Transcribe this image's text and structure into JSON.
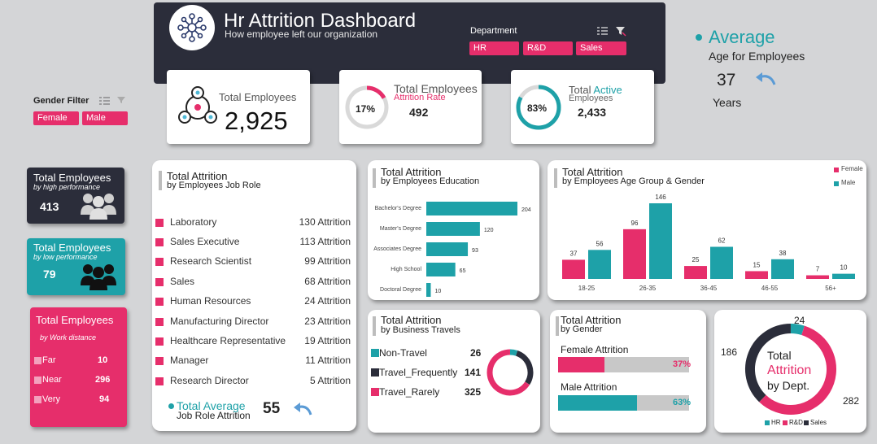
{
  "header": {
    "title": "Hr Attrition Dashboard",
    "subtitle": "How employee left our organization",
    "department_label": "Department",
    "departments": [
      "HR",
      "R&D",
      "Sales"
    ]
  },
  "gender_filter": {
    "label": "Gender Filter",
    "options": [
      "Female",
      "Male"
    ]
  },
  "kpi_total": {
    "label": "Total Employees",
    "value": "2,925"
  },
  "kpi_attrition": {
    "label1": "Total Employees",
    "label2": "Attrition Rate",
    "percent": "17%",
    "percent_value": 17,
    "value": "492"
  },
  "kpi_active": {
    "label1": "Total",
    "label1b": "Active",
    "label2": "Employees",
    "percent": "83%",
    "percent_value": 83,
    "value": "2,433"
  },
  "avg_age": {
    "title": "Average",
    "subtitle": "Age for Employees",
    "value": "37",
    "unit": "Years"
  },
  "high_perf": {
    "title": "Total Employees",
    "sub": "by high performance",
    "value": "413"
  },
  "low_perf": {
    "title": "Total Employees",
    "sub": "by low performance",
    "value": "79"
  },
  "distance": {
    "title": "Total Employees",
    "sub": "by Work distance",
    "rows": [
      {
        "label": "Far",
        "value": "10"
      },
      {
        "label": "Near",
        "value": "296"
      },
      {
        "label": "Very",
        "value": "94"
      }
    ]
  },
  "job_role": {
    "title": "Total Attrition",
    "sub": "by Employees Job Role",
    "rows": [
      {
        "name": "Laboratory",
        "value": "130 Attrition"
      },
      {
        "name": "Sales Executive",
        "value": "113 Attrition"
      },
      {
        "name": "Research Scientist",
        "value": "99 Attrition"
      },
      {
        "name": "Sales",
        "value": "68 Attrition"
      },
      {
        "name": "Human Resources",
        "value": "24 Attrition"
      },
      {
        "name": "Manufacturing Director",
        "value": "23 Attrition"
      },
      {
        "name": "Healthcare Representative",
        "value": "19 Attrition"
      },
      {
        "name": "Manager",
        "value": "11 Attrition"
      },
      {
        "name": "Research Director",
        "value": "5 Attrition"
      }
    ],
    "avg_label1": "Total Average",
    "avg_label2": "Job Role Attrition",
    "avg_value": "55"
  },
  "education": {
    "title": "Total Attrition",
    "sub": "by Employees Education",
    "categories": [
      "Bachelor's Degree",
      "Master's Degree",
      "Associates Degree",
      "High School",
      "Doctoral Degree"
    ],
    "values": [
      204,
      120,
      93,
      65,
      10
    ]
  },
  "age_gender": {
    "title": "Total Attrition",
    "sub": "by Employees Age Group & Gender",
    "legend": [
      "Female",
      "Male"
    ],
    "categories": [
      "18-25",
      "26-35",
      "36-45",
      "46-55",
      "56+"
    ],
    "female": [
      37,
      96,
      25,
      15,
      7
    ],
    "male": [
      56,
      146,
      62,
      38,
      10
    ]
  },
  "travel": {
    "title": "Total Attrition",
    "sub": "by Business Travels",
    "rows": [
      {
        "label": "Non-Travel",
        "value": "26"
      },
      {
        "label": "Travel_Frequently",
        "value": "141"
      },
      {
        "label": "Travel_Rarely",
        "value": "325"
      }
    ]
  },
  "gender_att": {
    "title": "Total Attrition",
    "sub": "by Gender",
    "female_label": "Female Attrition",
    "female_pct": "37%",
    "female_value": 37,
    "male_label": "Male Attrition",
    "male_pct": "63%",
    "male_value": 63
  },
  "dept_donut": {
    "line1": "Total",
    "line2": "Attrition",
    "line3": "by Dept.",
    "labels": [
      "HR",
      "R&D",
      "Sales"
    ],
    "values": [
      24,
      282,
      186
    ],
    "value_labels": [
      "24",
      "282",
      "186"
    ]
  },
  "colors": {
    "pink": "#e62e6b",
    "teal": "#1ea1a8",
    "dark": "#2b2d3a",
    "grey": "#c8c8c8"
  },
  "chart_data": [
    {
      "type": "bar",
      "title": "Total Attrition by Employees Education",
      "categories": [
        "Bachelor's Degree",
        "Master's Degree",
        "Associates Degree",
        "High School",
        "Doctoral Degree"
      ],
      "values": [
        204,
        120,
        93,
        65,
        10
      ]
    },
    {
      "type": "bar",
      "title": "Total Attrition by Employees Age Group & Gender",
      "categories": [
        "18-25",
        "26-35",
        "36-45",
        "46-55",
        "56+"
      ],
      "series": [
        {
          "name": "Female",
          "values": [
            37,
            96,
            25,
            15,
            7
          ]
        },
        {
          "name": "Male",
          "values": [
            56,
            146,
            62,
            38,
            10
          ]
        }
      ]
    },
    {
      "type": "pie",
      "title": "Total Attrition by Business Travels",
      "categories": [
        "Non-Travel",
        "Travel_Frequently",
        "Travel_Rarely"
      ],
      "values": [
        26,
        141,
        325
      ]
    },
    {
      "type": "pie",
      "title": "Total Attrition by Dept.",
      "categories": [
        "HR",
        "R&D",
        "Sales"
      ],
      "values": [
        24,
        282,
        186
      ]
    }
  ]
}
